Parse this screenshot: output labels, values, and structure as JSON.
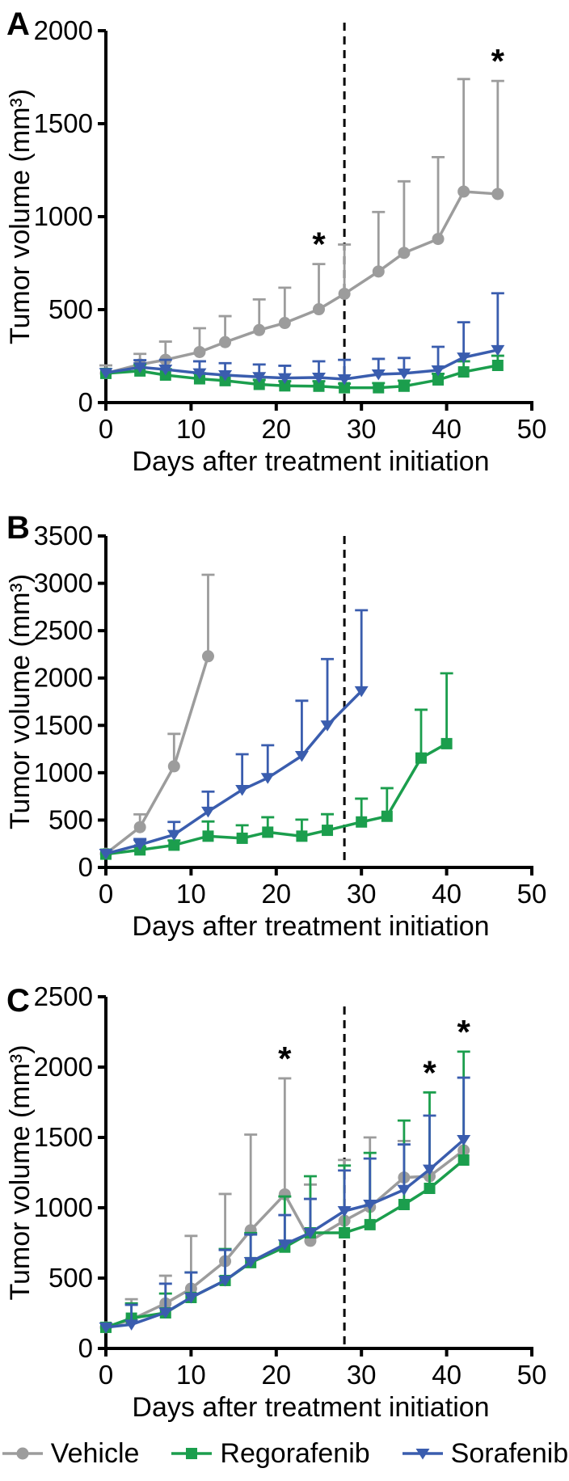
{
  "chart_data": [
    {
      "panel_label": "A",
      "type": "line",
      "xlabel": "Days after treatment initiation",
      "ylabel": "Tumor volume (mm³)",
      "xlim": [
        0,
        50
      ],
      "ylim": [
        0,
        2000
      ],
      "xticks": [
        0,
        10,
        20,
        30,
        40,
        50
      ],
      "yticks": [
        0,
        500,
        1000,
        1500,
        2000
      ],
      "dashed_line_x": 28,
      "series": [
        {
          "name": "Vehicle",
          "marker": "circle",
          "color": "#9c9c9c",
          "x": [
            0,
            4,
            7,
            11,
            14,
            18,
            21,
            25,
            28,
            32,
            35,
            39,
            42,
            46
          ],
          "y": [
            158,
            205,
            230,
            272,
            325,
            390,
            428,
            502,
            585,
            705,
            805,
            880,
            1135,
            1122
          ],
          "err_top": [
            200,
            262,
            328,
            400,
            465,
            555,
            618,
            745,
            850,
            1025,
            1190,
            1320,
            1740,
            1730
          ]
        },
        {
          "name": "Regorafenib",
          "marker": "square",
          "color": "#1b9e4d",
          "x": [
            0,
            4,
            7,
            11,
            14,
            18,
            21,
            25,
            28,
            32,
            35,
            39,
            42,
            46
          ],
          "y": [
            157,
            170,
            148,
            128,
            118,
            98,
            90,
            88,
            80,
            80,
            88,
            122,
            165,
            200
          ],
          "err_top": [
            null,
            205,
            180,
            158,
            148,
            122,
            115,
            115,
            102,
            105,
            118,
            155,
            222,
            252
          ]
        },
        {
          "name": "Sorafenib",
          "marker": "triangle-down",
          "color": "#3a5dae",
          "x": [
            0,
            4,
            7,
            11,
            14,
            18,
            21,
            25,
            28,
            32,
            35,
            39,
            42,
            46
          ],
          "y": [
            160,
            190,
            178,
            158,
            148,
            138,
            132,
            135,
            126,
            152,
            157,
            174,
            243,
            283
          ],
          "err_top": [
            null,
            228,
            230,
            222,
            212,
            205,
            198,
            222,
            230,
            235,
            240,
            300,
            432,
            588
          ]
        }
      ],
      "annotations": [
        {
          "x": 25,
          "above_value": 745,
          "text": "*"
        },
        {
          "x": 46,
          "above_value": 1730,
          "text": "*"
        }
      ]
    },
    {
      "panel_label": "B",
      "type": "line",
      "xlabel": "Days after treatment initiation",
      "ylabel": "Tumor volume (mm³)",
      "xlim": [
        0,
        50
      ],
      "ylim": [
        0,
        3500
      ],
      "xticks": [
        0,
        10,
        20,
        30,
        40,
        50
      ],
      "yticks": [
        0,
        500,
        1000,
        1500,
        2000,
        2500,
        3000,
        3500
      ],
      "dashed_line_x": 28,
      "series": [
        {
          "name": "Vehicle",
          "marker": "circle",
          "color": "#9c9c9c",
          "x": [
            0,
            4,
            8,
            12
          ],
          "y": [
            145,
            425,
            1068,
            2230
          ],
          "err_top": [
            null,
            560,
            1410,
            3090
          ]
        },
        {
          "name": "Regorafenib",
          "marker": "square",
          "color": "#1b9e4d",
          "x": [
            0,
            4,
            8,
            12,
            16,
            19,
            23,
            26,
            30,
            33,
            37,
            40
          ],
          "y": [
            140,
            185,
            235,
            330,
            308,
            372,
            330,
            392,
            480,
            540,
            1155,
            1307
          ],
          "err_top": [
            null,
            215,
            285,
            485,
            445,
            530,
            505,
            562,
            726,
            837,
            1665,
            2050
          ]
        },
        {
          "name": "Sorafenib",
          "marker": "triangle-down",
          "color": "#3a5dae",
          "x": [
            0,
            4,
            8,
            12,
            16,
            19,
            23,
            26,
            30
          ],
          "y": [
            145,
            240,
            345,
            590,
            820,
            945,
            1178,
            1500,
            1862
          ],
          "err_top": [
            null,
            300,
            480,
            800,
            1195,
            1290,
            1760,
            2200,
            2716
          ]
        }
      ],
      "annotations": []
    },
    {
      "panel_label": "C",
      "type": "line",
      "xlabel": "Days after treatment initiation",
      "ylabel": "Tumor volume (mm³)",
      "xlim": [
        0,
        50
      ],
      "ylim": [
        0,
        2500
      ],
      "xticks": [
        0,
        10,
        20,
        30,
        40,
        50
      ],
      "yticks": [
        0,
        500,
        1000,
        1500,
        2000,
        2500
      ],
      "dashed_line_x": 28,
      "series": [
        {
          "name": "Vehicle",
          "marker": "circle",
          "color": "#9c9c9c",
          "x": [
            0,
            3,
            7,
            10,
            14,
            17,
            21,
            24,
            28,
            31,
            35,
            38,
            42
          ],
          "y": [
            150,
            205,
            320,
            425,
            620,
            840,
            1095,
            765,
            908,
            1006,
            1215,
            1224,
            1408
          ],
          "err_top": [
            null,
            350,
            517,
            800,
            1098,
            1520,
            1920,
            1165,
            1340,
            1500,
            1475,
            null,
            null
          ]
        },
        {
          "name": "Regorafenib",
          "marker": "square",
          "color": "#1b9e4d",
          "x": [
            0,
            3,
            7,
            10,
            14,
            17,
            21,
            24,
            28,
            31,
            35,
            38,
            42
          ],
          "y": [
            150,
            215,
            253,
            362,
            483,
            610,
            720,
            822,
            822,
            880,
            1023,
            1138,
            1339
          ],
          "err_top": [
            null,
            320,
            390,
            540,
            707,
            820,
            1080,
            1224,
            1300,
            1390,
            1620,
            1820,
            2110
          ]
        },
        {
          "name": "Sorafenib",
          "marker": "triangle-down",
          "color": "#3a5dae",
          "x": [
            0,
            3,
            7,
            10,
            14,
            17,
            21,
            24,
            28,
            31,
            35,
            38,
            42
          ],
          "y": [
            150,
            170,
            255,
            362,
            483,
            615,
            740,
            822,
            977,
            1023,
            1128,
            1272,
            1483
          ],
          "err_top": [
            null,
            310,
            460,
            540,
            700,
            810,
            948,
            1063,
            1265,
            1350,
            1450,
            1655,
            1925
          ]
        }
      ],
      "annotations": [
        {
          "x": 21,
          "above_value": 1920,
          "text": "*"
        },
        {
          "x": 38,
          "above_value": 1820,
          "text": "*"
        },
        {
          "x": 42,
          "above_value": 2110,
          "text": "*"
        }
      ]
    }
  ],
  "legend": {
    "items": [
      {
        "label": "Vehicle",
        "marker": "circle",
        "color": "#9c9c9c"
      },
      {
        "label": "Regorafenib",
        "marker": "square",
        "color": "#1b9e4d"
      },
      {
        "label": "Sorafenib",
        "marker": "triangle-down",
        "color": "#3a5dae"
      }
    ]
  }
}
